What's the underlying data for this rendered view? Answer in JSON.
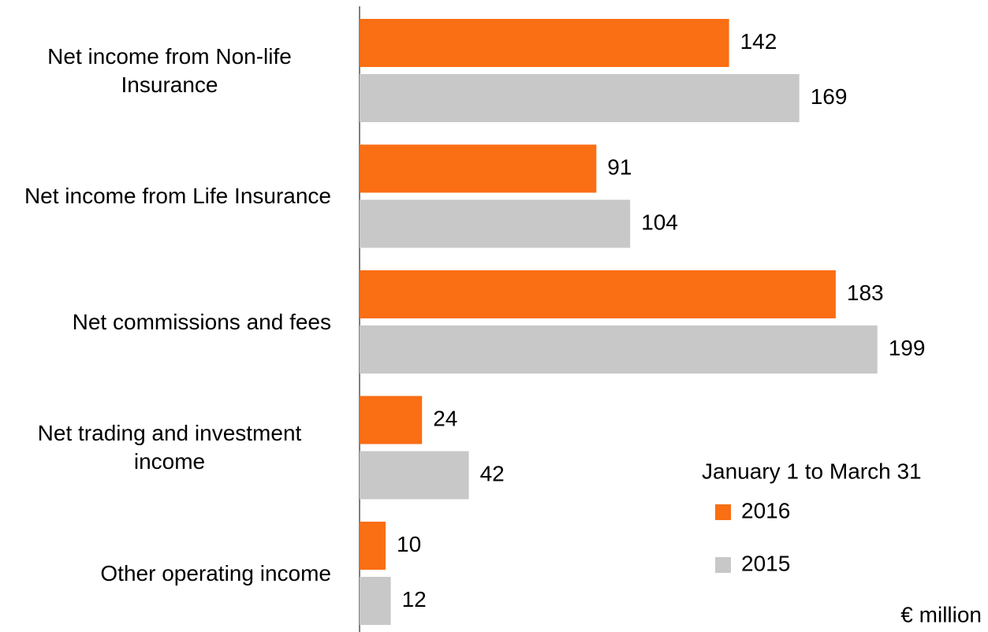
{
  "chart_data": {
    "type": "bar",
    "orientation": "horizontal",
    "categories": [
      "Net income from Non-life Insurance",
      "Net income from Life Insurance",
      "Net commissions and fees",
      "Net trading and investment income",
      "Other operating income"
    ],
    "series": [
      {
        "name": "2016",
        "color": "#fa6e14",
        "values": [
          142,
          91,
          183,
          24,
          10
        ]
      },
      {
        "name": "2015",
        "color": "#c8c8c8",
        "values": [
          169,
          104,
          199,
          42,
          12
        ]
      }
    ],
    "xlim": [
      0,
      200
    ],
    "legend_title": "January 1 to March 31",
    "unit_label": "€ million"
  }
}
